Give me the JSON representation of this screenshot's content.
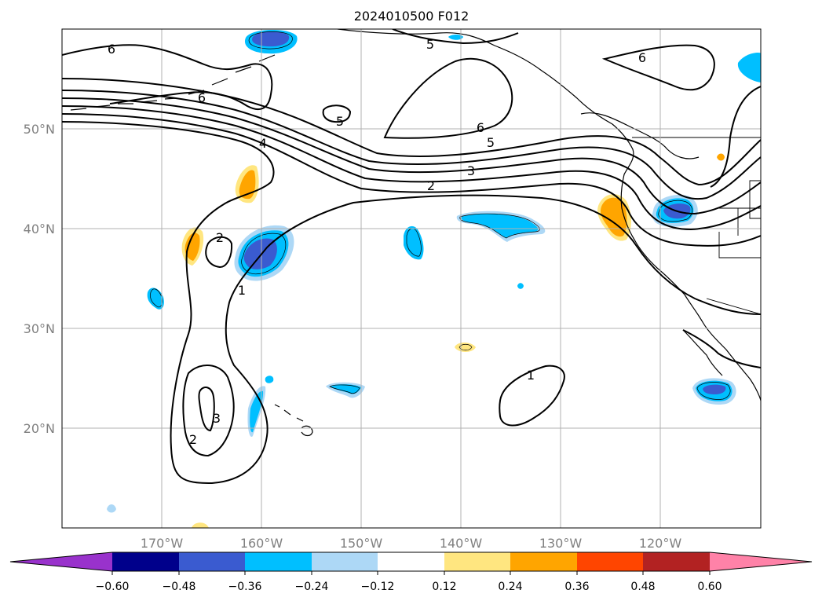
{
  "title": "2024010500 F012",
  "map": {
    "lon_range": [
      -180,
      -110
    ],
    "lat_range": [
      10,
      60
    ],
    "lon_gridlines": [
      -170,
      -160,
      -150,
      -140,
      -130,
      -120
    ],
    "lat_gridlines": [
      20,
      30,
      40,
      50
    ],
    "lon_tick_labels": [
      "170°W",
      "160°W",
      "150°W",
      "140°W",
      "130°W",
      "120°W"
    ],
    "lat_tick_labels": [
      "20°N",
      "30°N",
      "40°N",
      "50°N"
    ],
    "gridlines": "on",
    "contour_color": "#000000",
    "contour_labels": [
      "1",
      "2",
      "3",
      "4",
      "5",
      "6"
    ]
  },
  "colorbar": {
    "orientation": "horizontal",
    "extend": "both",
    "ticks": [
      "−0.60",
      "−0.48",
      "−0.36",
      "−0.24",
      "−0.12",
      "0.12",
      "0.24",
      "0.36",
      "0.48",
      "0.60"
    ],
    "colors": [
      "#9932cc",
      "#00008b",
      "#3a5bd0",
      "#00bfff",
      "#add8f6",
      "#ffffff",
      "#ffe680",
      "#ffa500",
      "#ff4500",
      "#b22222",
      "#ff82a8"
    ]
  }
}
